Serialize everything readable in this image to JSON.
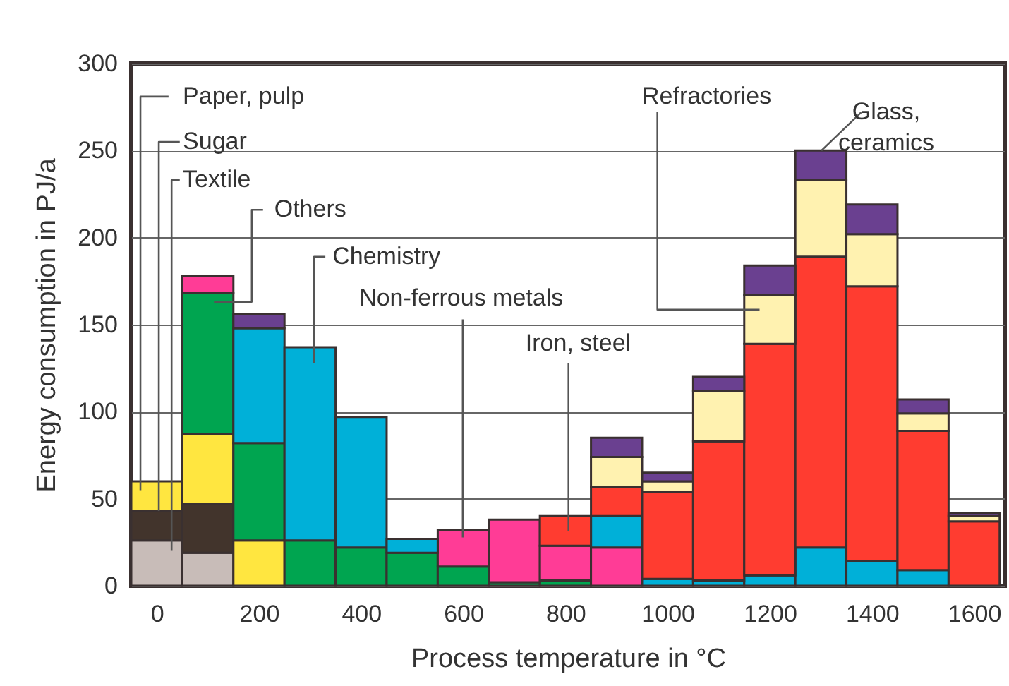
{
  "chart_data": {
    "type": "bar",
    "stacked": true,
    "xlabel": "Process temperature in °C",
    "ylabel": "Energy consumption in PJ/a",
    "x": [
      0,
      100,
      200,
      300,
      400,
      500,
      600,
      700,
      800,
      900,
      1000,
      1100,
      1200,
      1300,
      1400,
      1500,
      1600
    ],
    "series": [
      {
        "name": "Textile",
        "color": "#c8bcb8",
        "values": [
          26,
          19,
          null,
          null,
          null,
          null,
          null,
          null,
          null,
          null,
          null,
          null,
          null,
          null,
          null,
          null,
          null
        ]
      },
      {
        "name": "Sugar",
        "color": "#42342c",
        "values": [
          17,
          28,
          null,
          null,
          null,
          null,
          null,
          null,
          null,
          null,
          null,
          null,
          null,
          null,
          null,
          null,
          null
        ]
      },
      {
        "name": "Paper, pulp",
        "color": "#ffe640",
        "values": [
          17,
          40,
          26,
          null,
          null,
          null,
          null,
          null,
          null,
          null,
          null,
          null,
          null,
          null,
          null,
          null,
          null
        ]
      },
      {
        "name": "Others",
        "color": "#00a550",
        "values": [
          null,
          81,
          56,
          26,
          22,
          19,
          11,
          2,
          3,
          null,
          null,
          null,
          null,
          null,
          null,
          null,
          null
        ]
      },
      {
        "name": "Non-ferrous metals",
        "color": "#ff3c96",
        "values": [
          null,
          10,
          null,
          null,
          null,
          null,
          21,
          36,
          20,
          22,
          null,
          null,
          null,
          null,
          null,
          null,
          null
        ]
      },
      {
        "name": "Chemistry",
        "color": "#00b0d8",
        "values": [
          null,
          null,
          66,
          111,
          75,
          8,
          null,
          null,
          null,
          18,
          4,
          3,
          6,
          22,
          14,
          9,
          null
        ]
      },
      {
        "name": "Iron, steel",
        "color": "#ff3c30",
        "values": [
          null,
          null,
          null,
          null,
          null,
          null,
          null,
          null,
          17,
          17,
          50,
          80,
          133,
          167,
          158,
          80,
          37
        ]
      },
      {
        "name": "Refractories",
        "color": "#fff2b0",
        "values": [
          null,
          null,
          null,
          null,
          null,
          null,
          null,
          null,
          null,
          17,
          6,
          29,
          28,
          44,
          30,
          10,
          3
        ]
      },
      {
        "name": "Glass, ceramics",
        "color": "#6a4090",
        "values": [
          null,
          null,
          8,
          null,
          null,
          null,
          null,
          null,
          null,
          11,
          5,
          8,
          17,
          17,
          17,
          8,
          2
        ]
      }
    ],
    "xlim": [
      -50,
      1660
    ],
    "xticks": [
      0,
      200,
      400,
      600,
      800,
      1000,
      1200,
      1400,
      1600
    ],
    "ylim": [
      0,
      300
    ],
    "yticks": [
      0,
      50,
      100,
      150,
      200,
      250,
      300
    ],
    "grid": "y"
  }
}
